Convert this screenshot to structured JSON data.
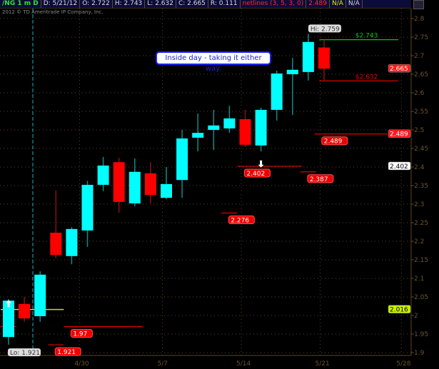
{
  "header": {
    "symbol": "/NG 1 m D",
    "date": "D: 5/21/12",
    "open": "O: 2.722",
    "high": "H: 2.743",
    "low": "L: 2.632",
    "close": "C: 2.665",
    "range": "R: 0.111",
    "study": "netlines (3, 5, 3, 0)",
    "study_value": "2.489",
    "na1": "N/A",
    "na2": "N/A"
  },
  "copyright": "2012 © TD Ameritrade IP Company, Inc.",
  "annotation": "Inside day - taking it either way.",
  "colors": {
    "up": "#00ffff",
    "down": "#ff0000",
    "grid": "#5a4620",
    "target": "#00cc00",
    "stop": "#dd0000",
    "avg": "#c8e000"
  },
  "chart_data": {
    "type": "candlestick",
    "ylim": [
      1.9,
      2.8
    ],
    "yticks": [
      "2.8",
      "2.75",
      "2.7",
      "2.65",
      "2.6",
      "2.55",
      "2.5",
      "2.45",
      "2.4",
      "2.35",
      "2.3",
      "2.25",
      "2.2",
      "2.15",
      "2.1",
      "2.05",
      "2",
      "1.95",
      "1.9"
    ],
    "xticks": [
      {
        "label": "4/30",
        "index": 4.5
      },
      {
        "label": "5/7",
        "index": 9.75
      },
      {
        "label": "5/14",
        "index": 14.75
      },
      {
        "label": "5/21",
        "index": 19.75
      },
      {
        "label": "5/28",
        "index": 24.9
      }
    ],
    "candles": [
      [
        1.942,
        2.044,
        1.921,
        2.04
      ],
      [
        2.031,
        2.05,
        1.983,
        1.992
      ],
      [
        1.998,
        2.119,
        1.983,
        2.11
      ],
      [
        2.223,
        2.337,
        2.154,
        2.163
      ],
      [
        2.16,
        2.238,
        2.138,
        2.233
      ],
      [
        2.229,
        2.363,
        2.185,
        2.352
      ],
      [
        2.352,
        2.427,
        2.335,
        2.404
      ],
      [
        2.413,
        2.425,
        2.277,
        2.306
      ],
      [
        2.302,
        2.423,
        2.294,
        2.387
      ],
      [
        2.383,
        2.413,
        2.302,
        2.325
      ],
      [
        2.317,
        2.4,
        2.313,
        2.354
      ],
      [
        2.365,
        2.5,
        2.317,
        2.477
      ],
      [
        2.479,
        2.544,
        2.442,
        2.492
      ],
      [
        2.5,
        2.554,
        2.446,
        2.512
      ],
      [
        2.504,
        2.565,
        2.492,
        2.531
      ],
      [
        2.529,
        2.554,
        2.454,
        2.46
      ],
      [
        2.458,
        2.56,
        2.442,
        2.554
      ],
      [
        2.554,
        2.66,
        2.525,
        2.652
      ],
      [
        2.65,
        2.694,
        2.54,
        2.662
      ],
      [
        2.656,
        2.759,
        2.633,
        2.737
      ],
      [
        2.722,
        2.743,
        2.632,
        2.665
      ]
    ],
    "candle_format": "open, high, low, close",
    "hi_label": "Hi: 2.759",
    "lo_label": "Lo: 1.921",
    "levels": [
      {
        "value": 2.743,
        "from": 19.7,
        "to": 24.7,
        "color": "#00cc00",
        "label": "$2.743",
        "label_style": "text"
      },
      {
        "value": 2.632,
        "from": 19.7,
        "to": 24.7,
        "color": "#dd0000",
        "label": "$2.632",
        "label_style": "text"
      },
      {
        "value": 2.489,
        "from": 19.4,
        "to": 24,
        "color": "#dd0000",
        "label": "2.489",
        "label_style": "badge"
      },
      {
        "value": 2.402,
        "from": 14.5,
        "to": 18.6,
        "color": "#dd0000",
        "label": "2.402",
        "label_style": "badge"
      },
      {
        "value": 2.387,
        "from": 18.5,
        "to": 19.5,
        "color": "#dd0000",
        "label": "2.387",
        "label_style": "badge"
      },
      {
        "value": 2.276,
        "from": 13.5,
        "to": 14.5,
        "color": "#dd0000",
        "label": "2.276",
        "label_style": "badge"
      },
      {
        "value": 1.97,
        "from": 3.5,
        "to": 8.5,
        "color": "#dd0000",
        "label": "1.97",
        "label_style": "badge"
      },
      {
        "value": 1.921,
        "from": 2.5,
        "to": 3.5,
        "color": "#dd0000",
        "label": "1.921",
        "label_style": "badge"
      },
      {
        "value": 1.97,
        "from": -0.5,
        "to": 0.5,
        "color": "#dd0000",
        "label": "",
        "label_style": "none"
      },
      {
        "value": 2.016,
        "from": -0.5,
        "to": 3.5,
        "color": "#c8e000",
        "label": "",
        "label_style": "none"
      }
    ],
    "price_badges": [
      {
        "value": 2.665,
        "label": "2.665",
        "bg": "#ff1a1a",
        "fg": "#ffffff"
      },
      {
        "value": 2.489,
        "label": "2.489",
        "bg": "#ff1a1a",
        "fg": "#ffffff"
      },
      {
        "value": 2.402,
        "label": "2.402",
        "bg": "#ffffff",
        "fg": "#000000"
      },
      {
        "value": 2.016,
        "label": "2.016",
        "bg": "#c8f000",
        "fg": "#000000"
      }
    ],
    "arrows": [
      {
        "index": 0,
        "direction": "up",
        "value": 2.03
      },
      {
        "index": 16,
        "direction": "down",
        "value": 2.41
      }
    ]
  }
}
